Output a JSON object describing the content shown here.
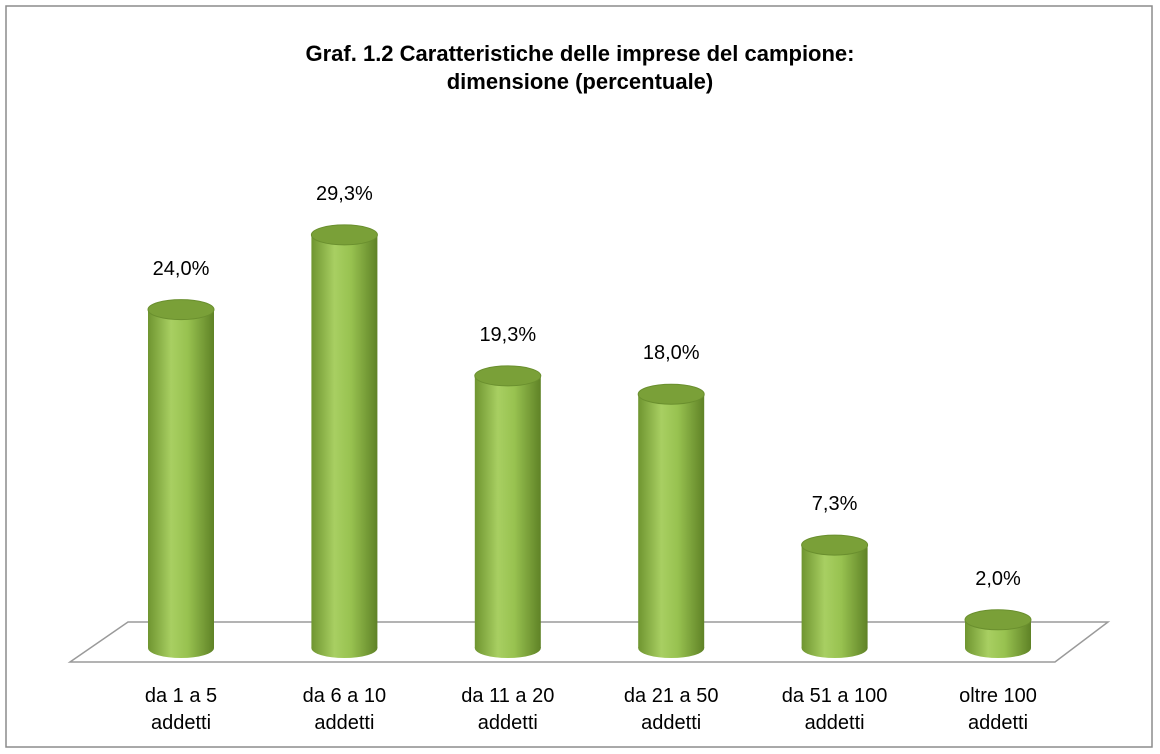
{
  "chart_data": {
    "type": "bar3d",
    "title": "Graf. 1.2 Caratteristiche delle imprese del campione: dimensione (percentuale)",
    "categories": [
      "da 1 a 5 addetti",
      "da 6 a 10 addetti",
      "da 11 a 20 addetti",
      "da 21 a 50 addetti",
      "da 51 a 100 addetti",
      "oltre 100 addetti"
    ],
    "values": [
      24.0,
      29.3,
      19.3,
      18.0,
      7.3,
      2.0
    ],
    "value_labels": [
      "24,0%",
      "29,3%",
      "19,3%",
      "18,0%",
      "7,3%",
      "2,0%"
    ],
    "color": "#8fb848"
  }
}
